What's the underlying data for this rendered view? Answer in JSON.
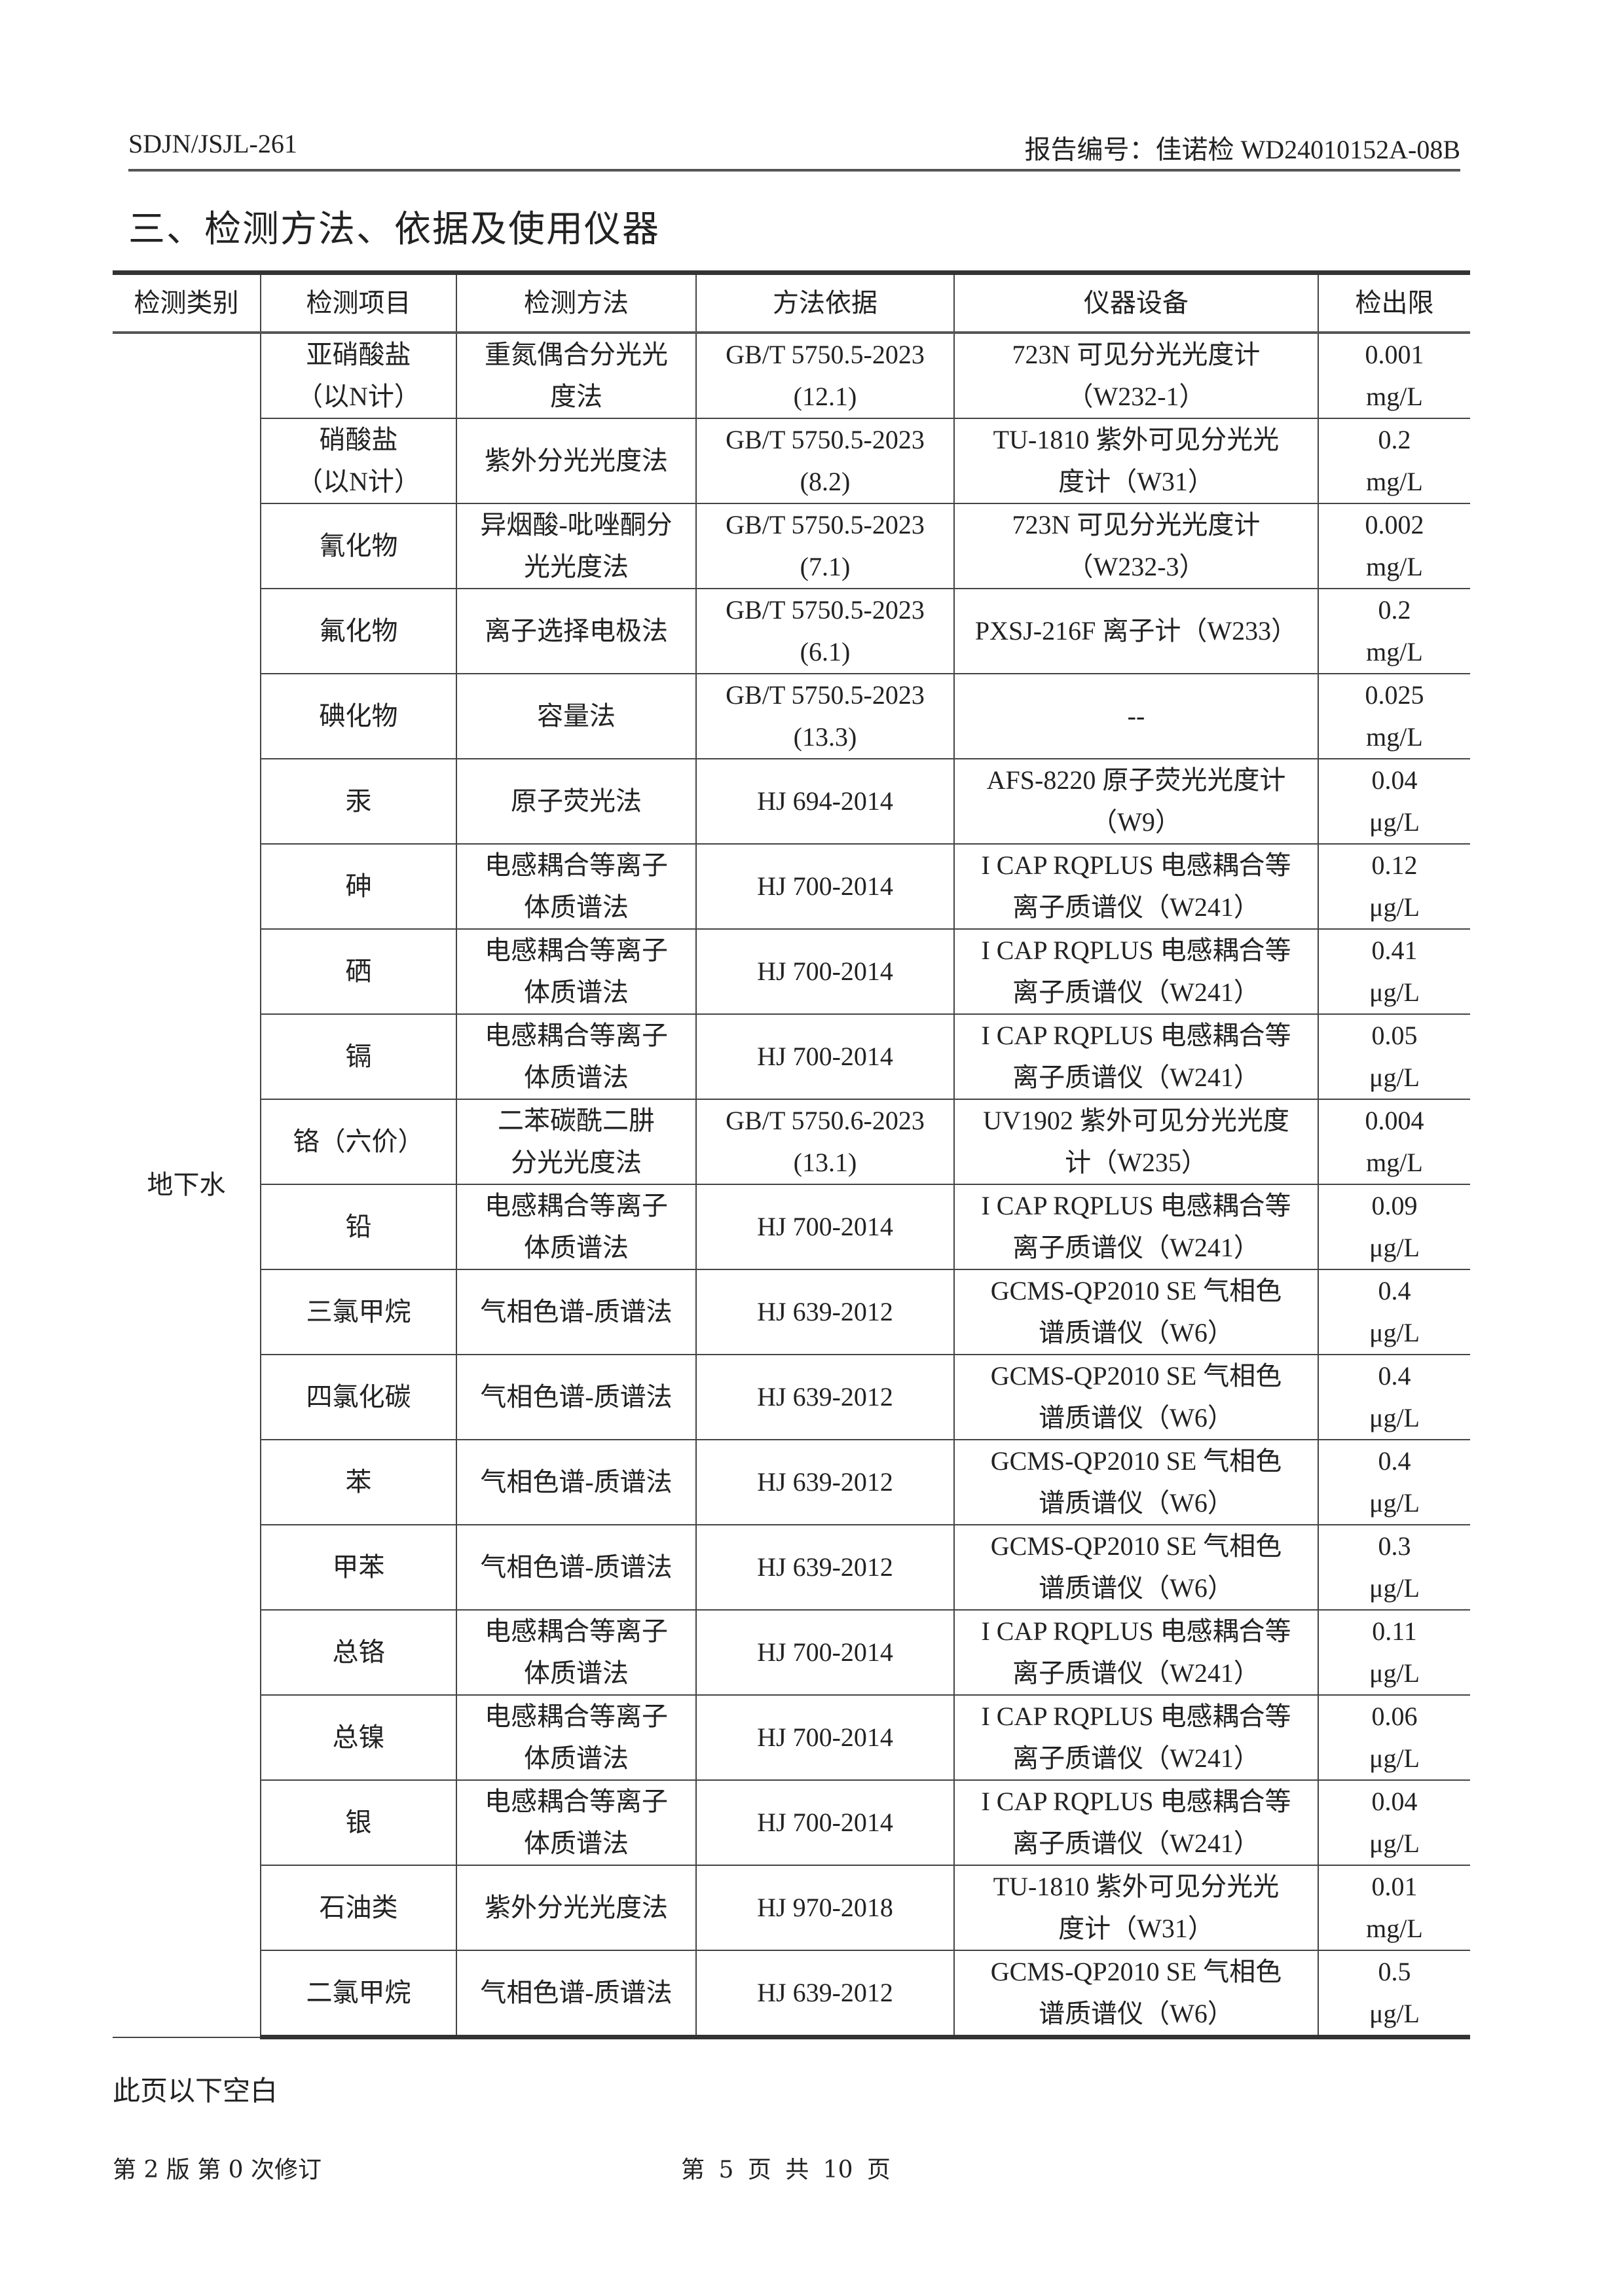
{
  "header": {
    "doc_code": "SDJN/JSJL-261",
    "report_no": "报告编号：佳诺检 WD24010152A-08B"
  },
  "section_title": "三、检测方法、依据及使用仪器",
  "table": {
    "columns": [
      "检测类别",
      "检测项目",
      "检测方法",
      "方法依据",
      "仪器设备",
      "检出限"
    ],
    "category": "地下水",
    "rows": [
      {
        "item": "亚硝酸盐\n（以N计）",
        "method": "重氮偶合分光光\n度法",
        "basis": "GB/T 5750.5-2023\n(12.1)",
        "instrument": "723N 可见分光光度计\n（W232-1）",
        "limit": "0.001\nmg/L"
      },
      {
        "item": "硝酸盐\n（以N计）",
        "method": "紫外分光光度法",
        "basis": "GB/T 5750.5-2023\n(8.2)",
        "instrument": "TU-1810 紫外可见分光光\n度计（W31）",
        "limit": "0.2\nmg/L"
      },
      {
        "item": "氰化物",
        "method": "异烟酸-吡唑酮分\n光光度法",
        "basis": "GB/T 5750.5-2023\n(7.1)",
        "instrument": "723N 可见分光光度计\n（W232-3）",
        "limit": "0.002\nmg/L"
      },
      {
        "item": "氟化物",
        "method": "离子选择电极法",
        "basis": "GB/T 5750.5-2023\n(6.1)",
        "instrument": "PXSJ-216F 离子计（W233）",
        "limit": "0.2\nmg/L"
      },
      {
        "item": "碘化物",
        "method": "容量法",
        "basis": "GB/T 5750.5-2023\n(13.3)",
        "instrument": "--",
        "limit": "0.025\nmg/L"
      },
      {
        "item": "汞",
        "method": "原子荧光法",
        "basis": "HJ 694-2014",
        "instrument": "AFS-8220 原子荧光光度计\n（W9）",
        "limit": "0.04\nμg/L"
      },
      {
        "item": "砷",
        "method": "电感耦合等离子\n体质谱法",
        "basis": "HJ 700-2014",
        "instrument": "I CAP RQPLUS 电感耦合等\n离子质谱仪（W241）",
        "limit": "0.12\nμg/L"
      },
      {
        "item": "硒",
        "method": "电感耦合等离子\n体质谱法",
        "basis": "HJ 700-2014",
        "instrument": "I CAP RQPLUS 电感耦合等\n离子质谱仪（W241）",
        "limit": "0.41\nμg/L"
      },
      {
        "item": "镉",
        "method": "电感耦合等离子\n体质谱法",
        "basis": "HJ 700-2014",
        "instrument": "I CAP RQPLUS 电感耦合等\n离子质谱仪（W241）",
        "limit": "0.05\nμg/L"
      },
      {
        "item": "铬（六价）",
        "method": "二苯碳酰二肼\n分光光度法",
        "basis": "GB/T 5750.6-2023\n(13.1)",
        "instrument": "UV1902 紫外可见分光光度\n计（W235）",
        "limit": "0.004\nmg/L"
      },
      {
        "item": "铅",
        "method": "电感耦合等离子\n体质谱法",
        "basis": "HJ 700-2014",
        "instrument": "I CAP RQPLUS 电感耦合等\n离子质谱仪（W241）",
        "limit": "0.09\nμg/L"
      },
      {
        "item": "三氯甲烷",
        "method": "气相色谱-质谱法",
        "basis": "HJ 639-2012",
        "instrument": "GCMS-QP2010 SE 气相色\n谱质谱仪（W6）",
        "limit": "0.4\nμg/L"
      },
      {
        "item": "四氯化碳",
        "method": "气相色谱-质谱法",
        "basis": "HJ 639-2012",
        "instrument": "GCMS-QP2010 SE 气相色\n谱质谱仪（W6）",
        "limit": "0.4\nμg/L"
      },
      {
        "item": "苯",
        "method": "气相色谱-质谱法",
        "basis": "HJ 639-2012",
        "instrument": "GCMS-QP2010 SE 气相色\n谱质谱仪（W6）",
        "limit": "0.4\nμg/L"
      },
      {
        "item": "甲苯",
        "method": "气相色谱-质谱法",
        "basis": "HJ 639-2012",
        "instrument": "GCMS-QP2010 SE 气相色\n谱质谱仪（W6）",
        "limit": "0.3\nμg/L"
      },
      {
        "item": "总铬",
        "method": "电感耦合等离子\n体质谱法",
        "basis": "HJ 700-2014",
        "instrument": "I CAP RQPLUS 电感耦合等\n离子质谱仪（W241）",
        "limit": "0.11\nμg/L"
      },
      {
        "item": "总镍",
        "method": "电感耦合等离子\n体质谱法",
        "basis": "HJ 700-2014",
        "instrument": "I CAP RQPLUS 电感耦合等\n离子质谱仪（W241）",
        "limit": "0.06\nμg/L"
      },
      {
        "item": "银",
        "method": "电感耦合等离子\n体质谱法",
        "basis": "HJ 700-2014",
        "instrument": "I CAP RQPLUS 电感耦合等\n离子质谱仪（W241）",
        "limit": "0.04\nμg/L"
      },
      {
        "item": "石油类",
        "method": "紫外分光光度法",
        "basis": "HJ 970-2018",
        "instrument": "TU-1810 紫外可见分光光\n度计（W31）",
        "limit": "0.01\nmg/L"
      },
      {
        "item": "二氯甲烷",
        "method": "气相色谱-质谱法",
        "basis": "HJ 639-2012",
        "instrument": "GCMS-QP2010 SE 气相色\n谱质谱仪（W6）",
        "limit": "0.5\nμg/L"
      }
    ]
  },
  "blank_note": "此页以下空白",
  "footer": {
    "version": "第 2 版  第 0 次修订",
    "page": "第 5 页 共 10 页"
  }
}
